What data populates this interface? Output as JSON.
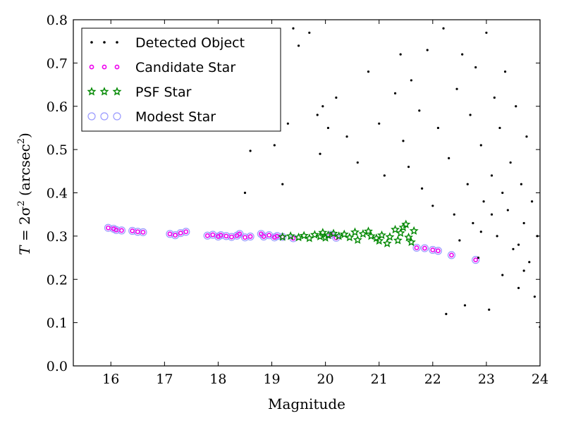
{
  "chart_data": {
    "type": "scatter",
    "xlabel": "Magnitude",
    "ylabel_main": "T",
    "ylabel_eq": " = 2σ",
    "ylabel_sup": "2",
    "ylabel_units": " (arcsec",
    "ylabel_units_sup": "2",
    "ylabel_close": ")",
    "xlim": [
      15.3,
      24
    ],
    "ylim": [
      0.0,
      0.8
    ],
    "xticks": [
      16,
      17,
      18,
      19,
      20,
      21,
      22,
      23,
      24
    ],
    "yticks": [
      0.0,
      0.1,
      0.2,
      0.3,
      0.4,
      0.5,
      0.6,
      0.7,
      0.8
    ],
    "grid": false,
    "legend_position": "upper-left",
    "series": [
      {
        "name": "Detected Object",
        "marker": "dot",
        "color": "#000000",
        "points": [
          [
            18.5,
            0.4
          ],
          [
            18.6,
            0.497
          ],
          [
            18.9,
            0.547
          ],
          [
            19.05,
            0.51
          ],
          [
            19.4,
            0.78
          ],
          [
            19.5,
            0.74
          ],
          [
            19.2,
            0.42
          ],
          [
            19.3,
            0.56
          ],
          [
            19.7,
            0.77
          ],
          [
            19.85,
            0.58
          ],
          [
            19.9,
            0.49
          ],
          [
            19.95,
            0.6
          ],
          [
            20.05,
            0.55
          ],
          [
            20.2,
            0.62
          ],
          [
            20.4,
            0.53
          ],
          [
            20.6,
            0.47
          ],
          [
            20.8,
            0.68
          ],
          [
            21.0,
            0.56
          ],
          [
            21.1,
            0.44
          ],
          [
            21.3,
            0.63
          ],
          [
            21.4,
            0.72
          ],
          [
            21.45,
            0.52
          ],
          [
            21.55,
            0.46
          ],
          [
            21.6,
            0.66
          ],
          [
            21.75,
            0.59
          ],
          [
            21.8,
            0.41
          ],
          [
            21.9,
            0.73
          ],
          [
            22.0,
            0.37
          ],
          [
            22.1,
            0.55
          ],
          [
            22.2,
            0.78
          ],
          [
            22.25,
            0.12
          ],
          [
            22.3,
            0.48
          ],
          [
            22.4,
            0.35
          ],
          [
            22.45,
            0.64
          ],
          [
            22.5,
            0.29
          ],
          [
            22.55,
            0.72
          ],
          [
            22.6,
            0.14
          ],
          [
            22.65,
            0.42
          ],
          [
            22.7,
            0.58
          ],
          [
            22.75,
            0.33
          ],
          [
            22.8,
            0.69
          ],
          [
            22.85,
            0.25
          ],
          [
            22.9,
            0.51
          ],
          [
            22.95,
            0.38
          ],
          [
            23.0,
            0.77
          ],
          [
            23.05,
            0.13
          ],
          [
            23.1,
            0.44
          ],
          [
            23.15,
            0.62
          ],
          [
            23.2,
            0.3
          ],
          [
            23.25,
            0.55
          ],
          [
            23.3,
            0.21
          ],
          [
            23.35,
            0.68
          ],
          [
            23.4,
            0.36
          ],
          [
            23.45,
            0.47
          ],
          [
            23.5,
            0.27
          ],
          [
            23.55,
            0.6
          ],
          [
            23.6,
            0.18
          ],
          [
            23.65,
            0.42
          ],
          [
            23.7,
            0.33
          ],
          [
            23.75,
            0.53
          ],
          [
            23.8,
            0.24
          ],
          [
            23.85,
            0.38
          ],
          [
            23.9,
            0.16
          ],
          [
            23.95,
            0.3
          ],
          [
            24.0,
            0.09
          ],
          [
            23.1,
            0.35
          ],
          [
            23.3,
            0.4
          ],
          [
            23.6,
            0.28
          ],
          [
            22.9,
            0.31
          ],
          [
            23.7,
            0.22
          ]
        ]
      },
      {
        "name": "Candidate Star",
        "marker": "small-circle",
        "color": "#ee00ee",
        "points": [
          [
            15.95,
            0.319
          ],
          [
            16.05,
            0.317
          ],
          [
            16.1,
            0.314
          ],
          [
            16.2,
            0.313
          ],
          [
            16.4,
            0.312
          ],
          [
            16.5,
            0.31
          ],
          [
            16.6,
            0.309
          ],
          [
            17.1,
            0.305
          ],
          [
            17.2,
            0.302
          ],
          [
            17.3,
            0.307
          ],
          [
            17.4,
            0.31
          ],
          [
            17.8,
            0.301
          ],
          [
            17.9,
            0.303
          ],
          [
            18.0,
            0.299
          ],
          [
            18.05,
            0.302
          ],
          [
            18.15,
            0.3
          ],
          [
            18.25,
            0.298
          ],
          [
            18.35,
            0.301
          ],
          [
            18.4,
            0.305
          ],
          [
            18.5,
            0.297
          ],
          [
            18.6,
            0.299
          ],
          [
            18.8,
            0.305
          ],
          [
            18.85,
            0.299
          ],
          [
            18.95,
            0.302
          ],
          [
            19.05,
            0.297
          ],
          [
            19.1,
            0.3
          ],
          [
            19.2,
            0.298
          ],
          [
            19.4,
            0.295
          ],
          [
            20.1,
            0.303
          ],
          [
            20.2,
            0.296
          ],
          [
            21.7,
            0.273
          ],
          [
            21.85,
            0.272
          ],
          [
            22.0,
            0.268
          ],
          [
            22.1,
            0.266
          ],
          [
            22.35,
            0.256
          ],
          [
            22.8,
            0.245
          ]
        ]
      },
      {
        "name": "PSF Star",
        "marker": "star",
        "color": "#008800",
        "points": [
          [
            19.2,
            0.298
          ],
          [
            19.35,
            0.3
          ],
          [
            19.5,
            0.297
          ],
          [
            19.6,
            0.301
          ],
          [
            19.7,
            0.295
          ],
          [
            19.8,
            0.303
          ],
          [
            19.9,
            0.299
          ],
          [
            19.95,
            0.308
          ],
          [
            20.0,
            0.296
          ],
          [
            20.05,
            0.302
          ],
          [
            20.15,
            0.306
          ],
          [
            20.25,
            0.3
          ],
          [
            20.35,
            0.304
          ],
          [
            20.45,
            0.297
          ],
          [
            20.55,
            0.309
          ],
          [
            20.6,
            0.291
          ],
          [
            20.7,
            0.305
          ],
          [
            20.8,
            0.311
          ],
          [
            20.85,
            0.3
          ],
          [
            20.95,
            0.295
          ],
          [
            21.0,
            0.289
          ],
          [
            21.05,
            0.302
          ],
          [
            21.15,
            0.283
          ],
          [
            21.2,
            0.298
          ],
          [
            21.3,
            0.315
          ],
          [
            21.35,
            0.29
          ],
          [
            21.4,
            0.307
          ],
          [
            21.45,
            0.32
          ],
          [
            21.5,
            0.327
          ],
          [
            21.55,
            0.297
          ],
          [
            21.6,
            0.286
          ],
          [
            21.65,
            0.312
          ]
        ]
      },
      {
        "name": "Modest Star",
        "marker": "open-circle",
        "color": "#9999ff",
        "points": [
          [
            15.95,
            0.319
          ],
          [
            16.05,
            0.317
          ],
          [
            16.1,
            0.314
          ],
          [
            16.2,
            0.313
          ],
          [
            16.4,
            0.312
          ],
          [
            16.5,
            0.31
          ],
          [
            16.6,
            0.309
          ],
          [
            17.1,
            0.305
          ],
          [
            17.2,
            0.302
          ],
          [
            17.3,
            0.307
          ],
          [
            17.4,
            0.31
          ],
          [
            17.8,
            0.301
          ],
          [
            17.9,
            0.303
          ],
          [
            18.0,
            0.299
          ],
          [
            18.05,
            0.302
          ],
          [
            18.15,
            0.3
          ],
          [
            18.25,
            0.298
          ],
          [
            18.35,
            0.301
          ],
          [
            18.4,
            0.305
          ],
          [
            18.5,
            0.297
          ],
          [
            18.6,
            0.299
          ],
          [
            18.8,
            0.305
          ],
          [
            18.85,
            0.299
          ],
          [
            18.95,
            0.302
          ],
          [
            19.05,
            0.297
          ],
          [
            19.1,
            0.3
          ],
          [
            19.2,
            0.298
          ],
          [
            19.4,
            0.295
          ],
          [
            20.1,
            0.303
          ],
          [
            20.2,
            0.296
          ],
          [
            21.7,
            0.273
          ],
          [
            21.85,
            0.272
          ],
          [
            22.0,
            0.268
          ],
          [
            22.1,
            0.266
          ],
          [
            22.35,
            0.256
          ],
          [
            22.8,
            0.245
          ]
        ]
      }
    ]
  }
}
